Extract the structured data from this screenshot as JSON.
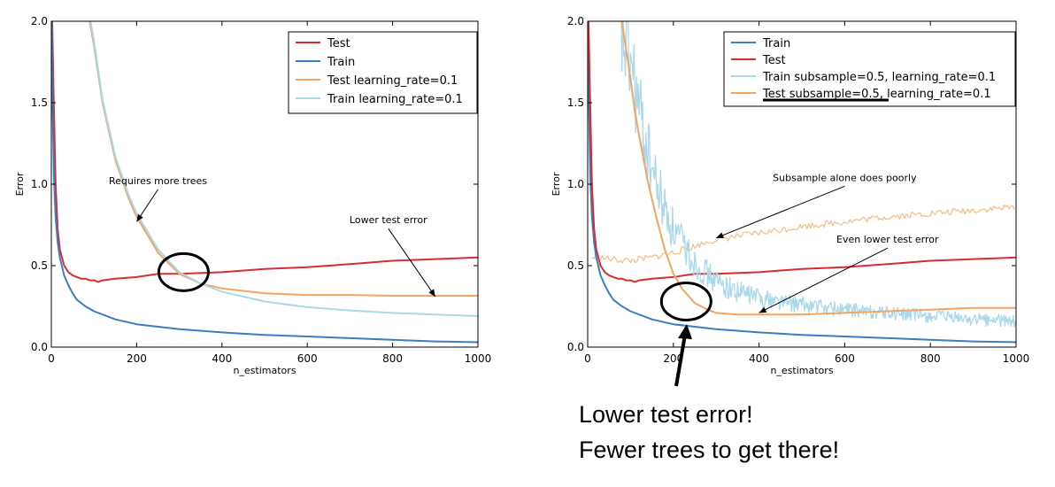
{
  "colors": {
    "train": "#3b7dc0",
    "test": "#d62d31",
    "train_alt": "#a9d8ea",
    "test_alt": "#f4a460",
    "annotation": "#000000"
  },
  "caption": {
    "line1": "Lower test error!",
    "line2": "Fewer trees to get there!"
  },
  "chart_data": [
    {
      "type": "line",
      "xlabel": "n_estimators",
      "ylabel": "Error",
      "xlim": [
        0,
        1000
      ],
      "ylim": [
        0.0,
        2.0
      ],
      "xticks": [
        "0",
        "200",
        "400",
        "600",
        "800",
        "1000"
      ],
      "yticks": [
        "0.0",
        "0.5",
        "1.0",
        "1.5",
        "2.0"
      ],
      "legend": "top-right",
      "grid": false,
      "series": [
        {
          "name": "Test",
          "color": "test",
          "x": [
            2,
            5,
            10,
            15,
            20,
            30,
            40,
            50,
            60,
            70,
            80,
            90,
            100,
            110,
            120,
            150,
            200,
            250,
            300,
            400,
            500,
            600,
            700,
            800,
            900,
            1000
          ],
          "y": [
            2.0,
            1.6,
            1.0,
            0.72,
            0.6,
            0.5,
            0.46,
            0.44,
            0.43,
            0.42,
            0.42,
            0.41,
            0.41,
            0.4,
            0.41,
            0.42,
            0.43,
            0.45,
            0.45,
            0.46,
            0.48,
            0.49,
            0.51,
            0.53,
            0.54,
            0.55
          ]
        },
        {
          "name": "Train",
          "color": "train",
          "x": [
            1,
            3,
            6,
            10,
            15,
            20,
            30,
            40,
            50,
            60,
            80,
            100,
            150,
            200,
            300,
            400,
            500,
            600,
            700,
            800,
            900,
            1000
          ],
          "y": [
            2.0,
            1.5,
            1.05,
            0.8,
            0.64,
            0.55,
            0.44,
            0.38,
            0.33,
            0.29,
            0.25,
            0.22,
            0.17,
            0.14,
            0.11,
            0.09,
            0.075,
            0.065,
            0.055,
            0.045,
            0.035,
            0.03
          ]
        },
        {
          "name": "Test learning_rate=0.1",
          "color": "test_alt",
          "x": [
            90,
            100,
            120,
            150,
            180,
            200,
            250,
            300,
            350,
            400,
            500,
            600,
            700,
            800,
            900,
            1000
          ],
          "y": [
            2.0,
            1.85,
            1.5,
            1.15,
            0.92,
            0.8,
            0.58,
            0.45,
            0.39,
            0.36,
            0.33,
            0.32,
            0.32,
            0.315,
            0.315,
            0.315
          ]
        },
        {
          "name": "Train learning_rate=0.1",
          "color": "train_alt",
          "x": [
            92,
            100,
            120,
            150,
            180,
            200,
            250,
            300,
            350,
            400,
            500,
            600,
            700,
            800,
            900,
            1000
          ],
          "y": [
            2.0,
            1.88,
            1.52,
            1.17,
            0.94,
            0.82,
            0.6,
            0.46,
            0.39,
            0.34,
            0.28,
            0.245,
            0.225,
            0.21,
            0.2,
            0.19
          ]
        }
      ],
      "annotations": [
        {
          "text": "Requires more trees",
          "x": 250,
          "y": 1.0,
          "arrow_to": [
            200,
            0.77
          ]
        },
        {
          "text": "Lower test error",
          "x": 790,
          "y": 0.76,
          "arrow_to": [
            900,
            0.31
          ]
        }
      ],
      "highlight_ellipse": {
        "x": 310,
        "y": 0.46
      }
    },
    {
      "type": "line",
      "xlabel": "n_estimators",
      "ylabel": "Error",
      "xlim": [
        0,
        1000
      ],
      "ylim": [
        0.0,
        2.0
      ],
      "xticks": [
        "0",
        "200",
        "400",
        "600",
        "800",
        "1000"
      ],
      "yticks": [
        "0.0",
        "0.5",
        "1.0",
        "1.5",
        "2.0"
      ],
      "legend": "top-right",
      "grid": false,
      "series": [
        {
          "name": "Train",
          "color": "train",
          "x": [
            1,
            3,
            6,
            10,
            15,
            20,
            30,
            40,
            50,
            60,
            80,
            100,
            150,
            200,
            300,
            400,
            500,
            600,
            700,
            800,
            900,
            1000
          ],
          "y": [
            2.0,
            1.5,
            1.05,
            0.8,
            0.64,
            0.55,
            0.44,
            0.38,
            0.33,
            0.29,
            0.25,
            0.22,
            0.17,
            0.14,
            0.11,
            0.09,
            0.075,
            0.065,
            0.055,
            0.045,
            0.035,
            0.03
          ]
        },
        {
          "name": "Test",
          "color": "test",
          "x": [
            2,
            5,
            10,
            15,
            20,
            30,
            40,
            50,
            60,
            70,
            80,
            90,
            100,
            110,
            120,
            150,
            200,
            250,
            300,
            400,
            500,
            600,
            700,
            800,
            900,
            1000
          ],
          "y": [
            2.0,
            1.6,
            1.0,
            0.72,
            0.6,
            0.5,
            0.46,
            0.44,
            0.43,
            0.42,
            0.42,
            0.41,
            0.41,
            0.4,
            0.41,
            0.42,
            0.43,
            0.45,
            0.45,
            0.46,
            0.48,
            0.49,
            0.51,
            0.53,
            0.54,
            0.55
          ]
        },
        {
          "name": "Train subsample=0.5, learning_rate=0.1",
          "color": "train_alt",
          "noisy": true,
          "x": [
            70,
            80,
            90,
            100,
            110,
            120,
            140,
            160,
            180,
            200,
            250,
            300,
            350,
            400,
            450,
            500,
            600,
            700,
            800,
            900,
            1000
          ],
          "y": [
            2.0,
            1.9,
            1.85,
            1.75,
            1.6,
            1.45,
            1.2,
            1.0,
            0.85,
            0.72,
            0.52,
            0.4,
            0.34,
            0.31,
            0.28,
            0.26,
            0.23,
            0.21,
            0.19,
            0.17,
            0.16
          ]
        },
        {
          "name": "Test subsample=0.5, learning_rate=0.1",
          "color": "test_alt",
          "x": [
            80,
            90,
            100,
            110,
            120,
            140,
            160,
            180,
            200,
            220,
            250,
            280,
            300,
            350,
            400,
            500,
            600,
            700,
            800,
            900,
            1000
          ],
          "y": [
            2.0,
            1.82,
            1.65,
            1.45,
            1.3,
            1.02,
            0.8,
            0.6,
            0.45,
            0.36,
            0.27,
            0.23,
            0.21,
            0.2,
            0.2,
            0.2,
            0.21,
            0.22,
            0.23,
            0.24,
            0.24
          ]
        },
        {
          "name": "",
          "color": "test_alt",
          "faint": true,
          "x": [
            10,
            30,
            50,
            100,
            150,
            200,
            250,
            300,
            400,
            500,
            600,
            700,
            800,
            900,
            1000
          ],
          "y": [
            0.55,
            0.55,
            0.54,
            0.53,
            0.55,
            0.58,
            0.62,
            0.66,
            0.7,
            0.74,
            0.77,
            0.8,
            0.82,
            0.84,
            0.86
          ]
        }
      ],
      "annotations": [
        {
          "text": "Subsample alone does poorly",
          "x": 600,
          "y": 1.02,
          "arrow_to": [
            300,
            0.67
          ]
        },
        {
          "text": "Even lower test error",
          "x": 700,
          "y": 0.64,
          "arrow_to": [
            400,
            0.21
          ]
        }
      ],
      "highlight_ellipse": {
        "x": 230,
        "y": 0.28
      }
    }
  ]
}
